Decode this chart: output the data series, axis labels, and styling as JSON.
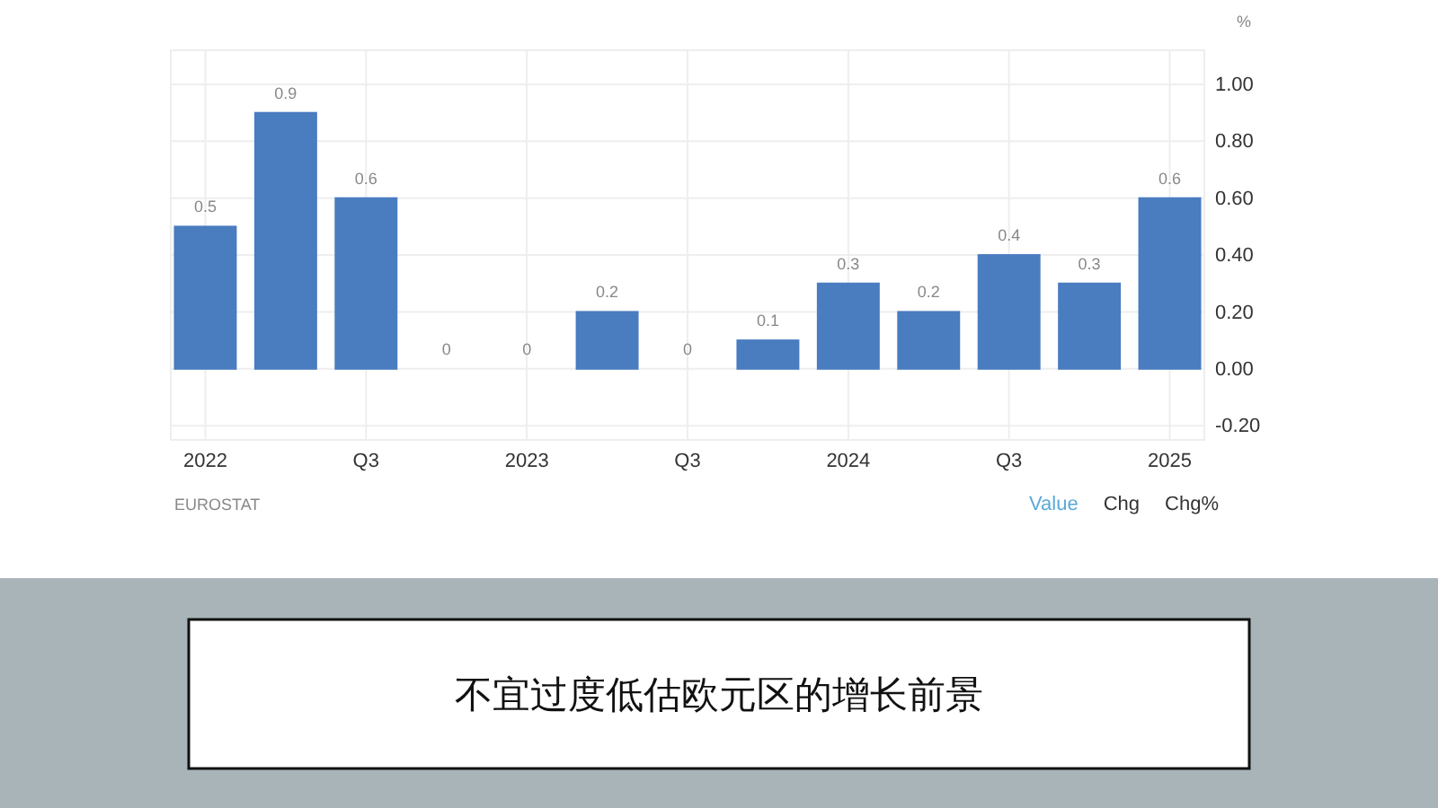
{
  "chart_data": {
    "type": "bar",
    "title": "不宜过度低估欧元区的增长前景",
    "ylabel": "%",
    "categories": [
      "2022",
      null,
      "Q3",
      null,
      "2023",
      null,
      "Q3",
      null,
      "2024",
      null,
      "Q3",
      null,
      "2025"
    ],
    "values": [
      0.5,
      0.9,
      0.6,
      0,
      0,
      0.2,
      0,
      0.1,
      0.3,
      0.2,
      0.4,
      0.3,
      0.6
    ],
    "color": "#4a7cc0",
    "data_labels": true,
    "ylim": [
      -0.25,
      1.12
    ],
    "yticks": [
      {
        "value": -0.2,
        "label": "-0.20"
      },
      {
        "value": 0,
        "label": "0.00"
      },
      {
        "value": 0.2,
        "label": "0.20"
      },
      {
        "value": 0.4,
        "label": "0.40"
      },
      {
        "value": 0.6,
        "label": "0.60"
      },
      {
        "value": 0.8,
        "label": "0.80"
      },
      {
        "value": 1,
        "label": "1.00"
      }
    ],
    "grid": true,
    "annotations": [
      "EUROSTAT",
      "Value",
      "Chg",
      "Chg%"
    ]
  }
}
